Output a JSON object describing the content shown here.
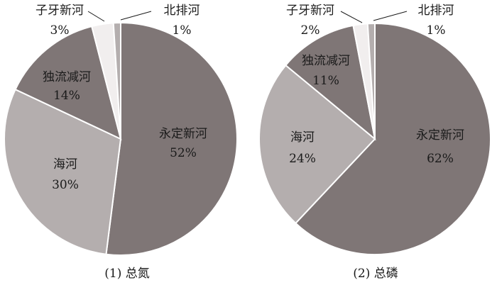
{
  "chart_data": [
    {
      "type": "pie",
      "caption": "(1) 总氮",
      "slices": [
        {
          "name": "永定新河",
          "value": 52,
          "pct_label": "52%",
          "color": "#7f7676"
        },
        {
          "name": "海河",
          "value": 30,
          "pct_label": "30%",
          "color": "#b4aeae"
        },
        {
          "name": "独流减河",
          "value": 14,
          "pct_label": "14%",
          "color": "#7f7676"
        },
        {
          "name": "子牙新河",
          "value": 3,
          "pct_label": "3%",
          "color": "#f1eeee"
        },
        {
          "name": "北排河",
          "value": 1,
          "pct_label": "1%",
          "color": "#b4aeae"
        }
      ]
    },
    {
      "type": "pie",
      "caption": "(2) 总磷",
      "slices": [
        {
          "name": "永定新河",
          "value": 62,
          "pct_label": "62%",
          "color": "#7f7676"
        },
        {
          "name": "海河",
          "value": 24,
          "pct_label": "24%",
          "color": "#b4aeae"
        },
        {
          "name": "独流减河",
          "value": 11,
          "pct_label": "11%",
          "color": "#7f7676"
        },
        {
          "name": "子牙新河",
          "value": 2,
          "pct_label": "2%",
          "color": "#f1eeee"
        },
        {
          "name": "北排河",
          "value": 1,
          "pct_label": "1%",
          "color": "#b4aeae"
        }
      ]
    }
  ]
}
